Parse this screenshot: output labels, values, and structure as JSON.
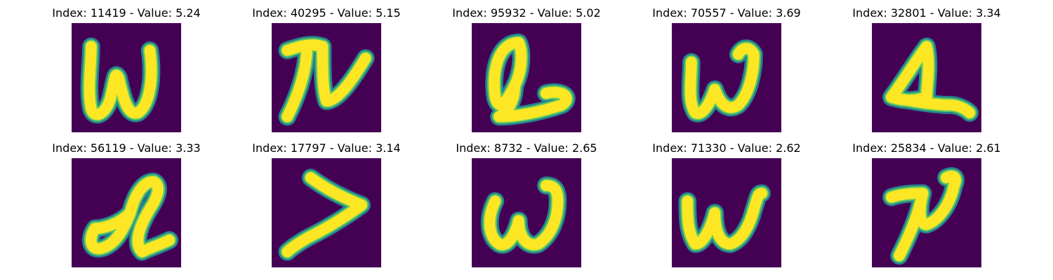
{
  "panel_background": "#440154",
  "stroke_outer_color": "#26828e",
  "stroke_mid_color": "#5ec962",
  "stroke_core_color": "#fde725",
  "samples": [
    {
      "title": "Index: 11419 - Value: 5.24",
      "glyph": "w-tall"
    },
    {
      "title": "Index: 40295 - Value: 5.15",
      "glyph": "pi-n"
    },
    {
      "title": "Index: 95932 - Value: 5.02",
      "glyph": "a-loop"
    },
    {
      "title": "Index: 70557 - Value: 3.69",
      "glyph": "w-curl"
    },
    {
      "title": "Index: 32801 - Value: 3.34",
      "glyph": "triangle"
    },
    {
      "title": "Index: 56119 - Value: 3.33",
      "glyph": "l-curl"
    },
    {
      "title": "Index: 17797 - Value: 3.14",
      "glyph": "greater-than"
    },
    {
      "title": "Index: 8732 - Value: 2.65",
      "glyph": "w-round"
    },
    {
      "title": "Index: 71330 - Value: 2.62",
      "glyph": "w-wide"
    },
    {
      "title": "Index: 25834 - Value: 2.61",
      "glyph": "r-n"
    }
  ]
}
